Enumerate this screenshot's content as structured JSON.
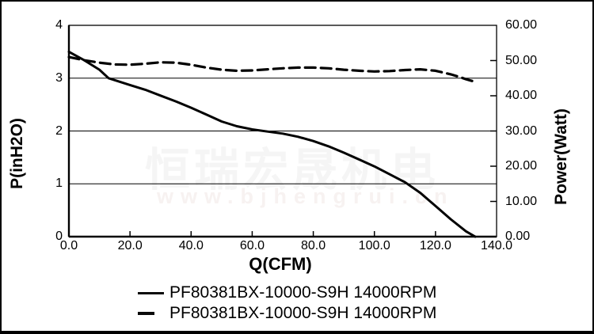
{
  "watermark": {
    "text": "恒瑞宏晟机电",
    "url": "www.bjhengrui.cn",
    "color": "#f5f5f5"
  },
  "chart_data": {
    "type": "line",
    "title": "",
    "xlabel": "Q(CFM)",
    "ylabel_left": "P(inH2O)",
    "ylabel_right": "Power(Watt)",
    "xlim": [
      0,
      140
    ],
    "ylim_left": [
      0,
      4
    ],
    "ylim_right": [
      0,
      60
    ],
    "x_ticks": [
      "0.0",
      "20.0",
      "40.0",
      "60.0",
      "80.0",
      "100.0",
      "120.0",
      "140.0"
    ],
    "y_left_ticks": [
      "4",
      "3",
      "2",
      "1",
      "0"
    ],
    "y_right_ticks": [
      "60.00",
      "50.00",
      "40.00",
      "30.00",
      "20.00",
      "10.00",
      "0.00"
    ],
    "gridlines_left": [
      1,
      2,
      3
    ],
    "grid": "horizontal",
    "legend_position": "bottom",
    "line_color": "#000000",
    "series": [
      {
        "name": "PF80381BX-10000-S9H 14000RPM",
        "style": "solid",
        "axis": "left",
        "points": [
          [
            0,
            3.5
          ],
          [
            5,
            3.34
          ],
          [
            10,
            3.16
          ],
          [
            13,
            3.0
          ],
          [
            20,
            2.87
          ],
          [
            25,
            2.78
          ],
          [
            30,
            2.67
          ],
          [
            35,
            2.56
          ],
          [
            40,
            2.44
          ],
          [
            45,
            2.31
          ],
          [
            50,
            2.18
          ],
          [
            55,
            2.09
          ],
          [
            60,
            2.03
          ],
          [
            65,
            1.99
          ],
          [
            70,
            1.95
          ],
          [
            75,
            1.89
          ],
          [
            80,
            1.81
          ],
          [
            85,
            1.71
          ],
          [
            90,
            1.59
          ],
          [
            95,
            1.46
          ],
          [
            100,
            1.33
          ],
          [
            105,
            1.18
          ],
          [
            110,
            1.03
          ],
          [
            115,
            0.83
          ],
          [
            120,
            0.58
          ],
          [
            125,
            0.33
          ],
          [
            130,
            0.1
          ],
          [
            133,
            0.0
          ]
        ]
      },
      {
        "name": "PF80381BX-10000-S9H 14000RPM",
        "style": "dashed",
        "axis": "right",
        "points": [
          [
            0,
            51.0
          ],
          [
            5,
            50.1
          ],
          [
            10,
            49.4
          ],
          [
            15,
            48.9
          ],
          [
            20,
            48.8
          ],
          [
            25,
            49.1
          ],
          [
            30,
            49.5
          ],
          [
            35,
            49.4
          ],
          [
            40,
            48.8
          ],
          [
            45,
            48.0
          ],
          [
            50,
            47.4
          ],
          [
            55,
            47.1
          ],
          [
            60,
            47.2
          ],
          [
            65,
            47.5
          ],
          [
            70,
            47.8
          ],
          [
            75,
            48.0
          ],
          [
            80,
            48.0
          ],
          [
            85,
            47.8
          ],
          [
            90,
            47.4
          ],
          [
            95,
            47.1
          ],
          [
            100,
            46.9
          ],
          [
            105,
            47.0
          ],
          [
            110,
            47.3
          ],
          [
            115,
            47.5
          ],
          [
            120,
            47.1
          ],
          [
            125,
            46.1
          ],
          [
            128,
            45.3
          ],
          [
            130,
            44.7
          ],
          [
            132,
            44.2
          ]
        ]
      }
    ]
  }
}
